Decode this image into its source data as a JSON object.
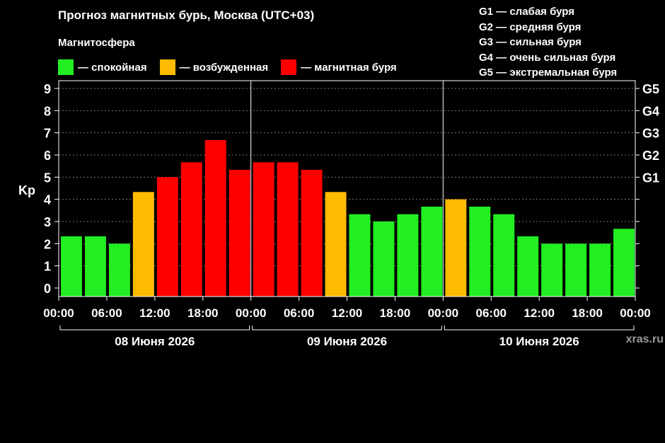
{
  "title": "Прогноз магнитных бурь, Москва (UTC+03)",
  "magnetosphere": {
    "heading": "Магнитосфера",
    "items": [
      {
        "label": "— спокойная",
        "color": "#22ee22"
      },
      {
        "label": "— возбужденная",
        "color": "#ffbb00"
      },
      {
        "label": "— магнитная буря",
        "color": "#ff0000"
      }
    ]
  },
  "g_scale": [
    "G1 — слабая буря",
    "G2 — средняя буря",
    "G3 — сильная буря",
    "G4 — очень сильная буря",
    "G5 — экстремальная буря"
  ],
  "watermark": "xras.ru",
  "chart_data": {
    "type": "bar",
    "ylabel": "Kp",
    "ylim": [
      0,
      9
    ],
    "y_ticks": [
      "0",
      "1",
      "2",
      "3",
      "4",
      "5",
      "6",
      "7",
      "8",
      "9"
    ],
    "right_ticks": [
      {
        "label": "G1",
        "kp": 5
      },
      {
        "label": "G2",
        "kp": 6
      },
      {
        "label": "G3",
        "kp": 7
      },
      {
        "label": "G4",
        "kp": 8
      },
      {
        "label": "G5",
        "kp": 9
      }
    ],
    "x_ticks": [
      "00:00",
      "06:00",
      "12:00",
      "18:00",
      "00:00",
      "06:00",
      "12:00",
      "18:00",
      "00:00",
      "06:00",
      "12:00",
      "18:00",
      "00:00"
    ],
    "days": [
      "08 Июня 2026",
      "09 Июня 2026",
      "10 Июня 2026"
    ],
    "grid": "horizontal dashed",
    "values": [
      2.33,
      2.33,
      2.0,
      4.33,
      5.0,
      5.67,
      6.67,
      5.33,
      5.67,
      5.67,
      5.33,
      4.33,
      3.33,
      3.0,
      3.33,
      3.67,
      4.0,
      3.67,
      3.33,
      2.33,
      2.0,
      2.0,
      2.0,
      2.67
    ],
    "colors": [
      "#22ee22",
      "#22ee22",
      "#22ee22",
      "#ffbb00",
      "#ff0000",
      "#ff0000",
      "#ff0000",
      "#ff0000",
      "#ff0000",
      "#ff0000",
      "#ff0000",
      "#ffbb00",
      "#22ee22",
      "#22ee22",
      "#22ee22",
      "#22ee22",
      "#ffbb00",
      "#22ee22",
      "#22ee22",
      "#22ee22",
      "#22ee22",
      "#22ee22",
      "#22ee22",
      "#22ee22"
    ]
  }
}
